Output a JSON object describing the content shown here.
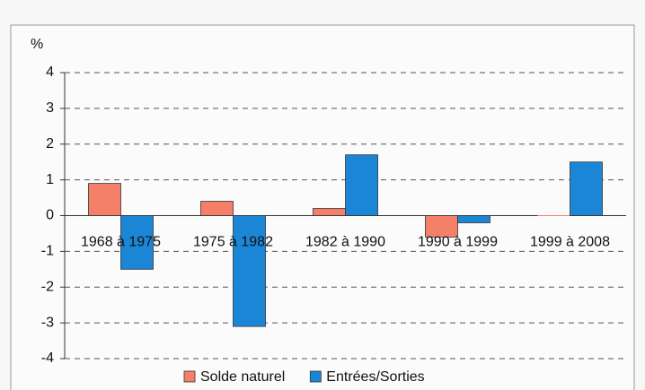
{
  "chart_data": {
    "type": "bar",
    "y_label": "%",
    "categories": [
      "1968 à 1975",
      "1975 à 1982",
      "1982 à 1990",
      "1990 à 1999",
      "1999 à 2008"
    ],
    "series": [
      {
        "name": "Solde naturel",
        "color": "#f4806a",
        "values": [
          0.9,
          0.4,
          0.2,
          -0.6,
          0
        ]
      },
      {
        "name": "Entrées/Sorties",
        "color": "#1b86d6",
        "values": [
          -1.5,
          -3.1,
          1.7,
          -0.2,
          1.5
        ]
      }
    ],
    "ylim": [
      -4,
      4
    ],
    "yticks": [
      -4,
      -3,
      -2,
      -1,
      0,
      1,
      2,
      3,
      4
    ],
    "grid": true,
    "legend": "bottom"
  }
}
